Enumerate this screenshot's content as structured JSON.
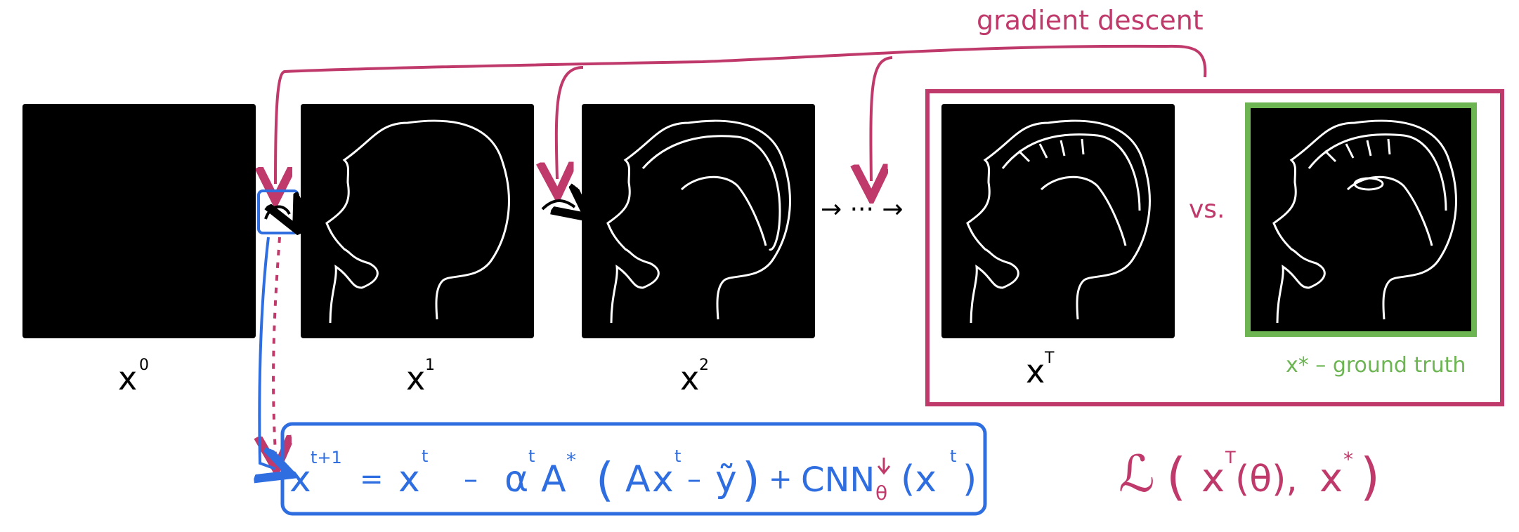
{
  "labels": {
    "gradient_descent": "gradient descent",
    "x0": "x",
    "x0_sup": "0",
    "x1": "x",
    "x1_sup": "1",
    "x2": "x",
    "x2_sup": "2",
    "xT": "x",
    "xT_sup": "T",
    "vs": "vs.",
    "ground_truth": "x* – ground truth",
    "ellipsis": "→ ··· →"
  },
  "equation": {
    "lhs": "x",
    "lhs_sup": "t+1",
    "eq": "=",
    "x_t": "x",
    "t": "t",
    "minus": "–",
    "alpha": "α",
    "A_adj": "A",
    "star": "*",
    "paren_open": "(",
    "A": "A",
    "x_t2": "x",
    "t2": "t",
    "minus2": "–",
    "y": "ỹ",
    "paren_close": ")",
    "plus": "+",
    "cnn": "CNN",
    "theta": "θ",
    "x_t3": "(x",
    "t3": "t",
    "close3": ")"
  },
  "loss": {
    "L": "ℒ",
    "open": "(",
    "xT": "x",
    "T": "T",
    "theta_arg": "(θ),",
    "xstar": "x",
    "star": "*",
    "close": ")"
  },
  "colors": {
    "red": "#c0396b",
    "blue": "#2f6ee0",
    "green": "#6cb552"
  }
}
